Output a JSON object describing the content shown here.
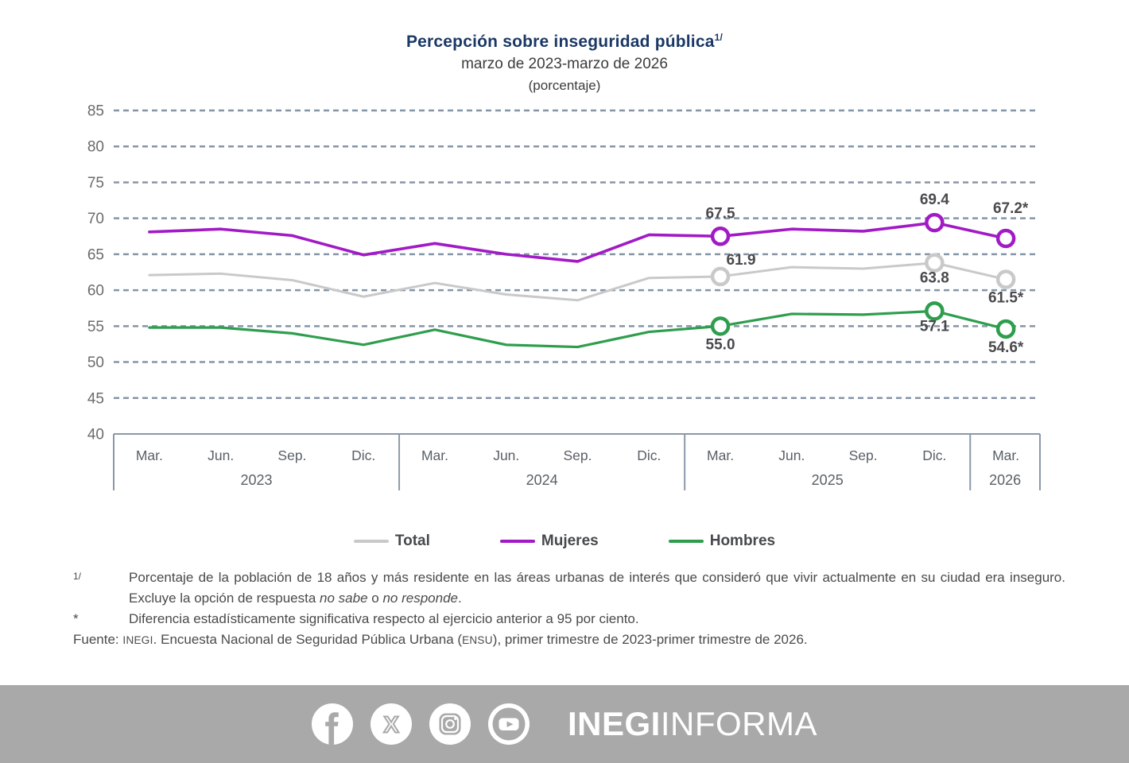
{
  "header": {
    "title": "Percepción sobre inseguridad pública",
    "title_sup": "1/",
    "subtitle": "marzo de 2023-marzo de 2026",
    "unit": "(porcentaje)"
  },
  "colors": {
    "title": "#1b3866",
    "total": "#c9c9c9",
    "mujeres": "#a21ac6",
    "hombres": "#2e9e4e",
    "gridline": "#8595a8",
    "axis_border": "#8a99aa",
    "point_label": "#4a4a4e",
    "footer_band": "#a9a9a9"
  },
  "chart_data": {
    "type": "line",
    "x_categories": [
      "Mar.",
      "Jun.",
      "Sep.",
      "Dic.",
      "Mar.",
      "Jun.",
      "Sep.",
      "Dic.",
      "Mar.",
      "Jun.",
      "Sep.",
      "Dic.",
      "Mar."
    ],
    "year_groups": [
      {
        "label": "2023",
        "count": 4
      },
      {
        "label": "2024",
        "count": 4
      },
      {
        "label": "2025",
        "count": 4
      },
      {
        "label": "2026",
        "count": 1
      }
    ],
    "ylim": [
      40,
      85
    ],
    "ytick_step": 5,
    "grid": "dashed",
    "series": [
      {
        "name": "Total",
        "color": "#c9c9c9",
        "width": 3.0,
        "values": [
          62.1,
          62.3,
          61.4,
          59.1,
          61.0,
          59.4,
          58.6,
          61.7,
          61.9,
          63.2,
          63.0,
          63.8,
          61.5
        ]
      },
      {
        "name": "Hombres",
        "color": "#2e9e4e",
        "width": 3.2,
        "values": [
          54.8,
          54.8,
          54.0,
          52.4,
          54.5,
          52.4,
          52.1,
          54.2,
          55.0,
          56.7,
          56.6,
          57.1,
          54.6
        ]
      },
      {
        "name": "Mujeres",
        "color": "#a21ac6",
        "width": 3.6,
        "values": [
          68.1,
          68.5,
          67.6,
          64.9,
          66.5,
          65.0,
          64.0,
          67.7,
          67.5,
          68.5,
          68.2,
          69.4,
          67.2
        ]
      }
    ],
    "marker_indices": [
      8,
      11,
      12
    ],
    "point_labels": [
      {
        "series": "Mujeres",
        "index": 8,
        "text": "67.5",
        "pos": "above"
      },
      {
        "series": "Mujeres",
        "index": 11,
        "text": "69.4",
        "pos": "above"
      },
      {
        "series": "Mujeres",
        "index": 12,
        "text": "67.2*",
        "pos": "above-far"
      },
      {
        "series": "Total",
        "index": 8,
        "text": "61.9",
        "pos": "above-right"
      },
      {
        "series": "Total",
        "index": 11,
        "text": "63.8",
        "pos": "below-near"
      },
      {
        "series": "Total",
        "index": 12,
        "text": "61.5*",
        "pos": "below"
      },
      {
        "series": "Hombres",
        "index": 8,
        "text": "55.0",
        "pos": "below"
      },
      {
        "series": "Hombres",
        "index": 11,
        "text": "57.1",
        "pos": "below-near"
      },
      {
        "series": "Hombres",
        "index": 12,
        "text": "54.6*",
        "pos": "below"
      }
    ]
  },
  "legend": {
    "items": [
      {
        "label": "Total",
        "color": "#c9c9c9"
      },
      {
        "label": "Mujeres",
        "color": "#a21ac6"
      },
      {
        "label": "Hombres",
        "color": "#2e9e4e"
      }
    ]
  },
  "footnotes": {
    "fn1_marker": "1/",
    "fn1_text_a": "Porcentaje de la población de 18 años y más residente en las áreas urbanas de interés que consideró que vivir actualmente en su ciudad era inseguro. Excluye la opción de respuesta ",
    "fn1_italic_a": "no sabe",
    "fn1_text_b": " o ",
    "fn1_italic_b": "no responde",
    "fn1_text_c": ".",
    "fn2_marker": "*",
    "fn2_text": "Diferencia estadísticamente significativa respecto al ejercicio anterior a 95 por ciento.",
    "source_label": "Fuente:",
    "source_inegi": "INEGI",
    "source_text_a": ". Encuesta Nacional de Seguridad Pública Urbana (",
    "source_ensu": "ENSU",
    "source_text_b": "), primer trimestre de 2023-primer trimestre de 2026."
  },
  "footer": {
    "icons": [
      "facebook-icon",
      "x-icon",
      "instagram-icon",
      "youtube-icon"
    ],
    "brand_bold": "INEGI",
    "brand_regular": "INFORMA"
  }
}
